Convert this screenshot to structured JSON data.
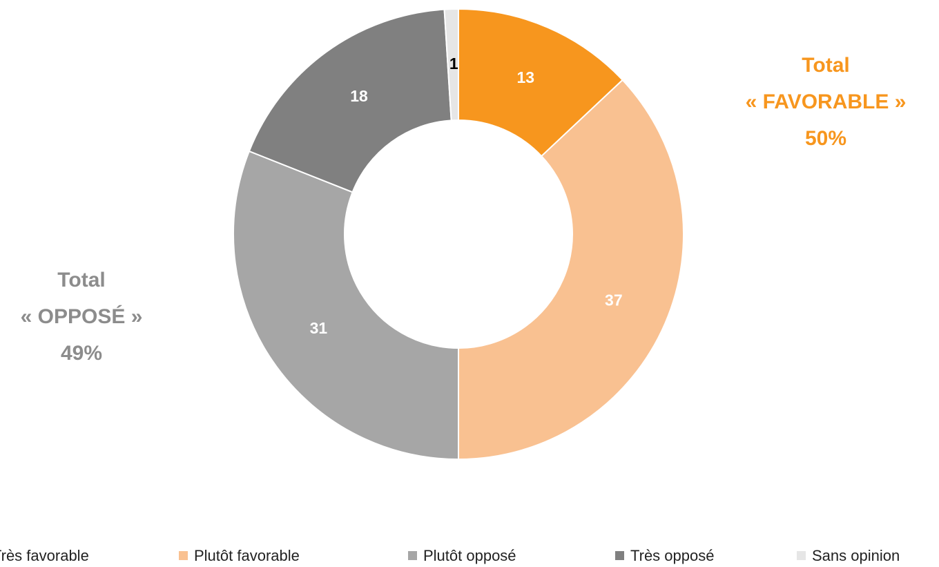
{
  "chart_data": {
    "type": "donut",
    "categories": [
      "Très favorable",
      "Plutôt favorable",
      "Plutôt opposé",
      "Très opposé",
      "Sans opinion"
    ],
    "values": [
      13,
      37,
      31,
      18,
      1
    ],
    "colors": [
      "#f7961e",
      "#f9c191",
      "#a6a6a6",
      "#808080",
      "#e6e6e6"
    ],
    "label_colors": [
      "#ffffff",
      "#ffffff",
      "#ffffff",
      "#ffffff",
      "#000000"
    ],
    "annotations": [
      {
        "lines": [
          "Total",
          "« FAVORABLE »",
          "50%"
        ],
        "color": "#f7961e"
      },
      {
        "lines": [
          "Total",
          "« OPPOSÉ »",
          "49%"
        ],
        "color": "#8c8c8c"
      }
    ],
    "legend": "bottom"
  }
}
